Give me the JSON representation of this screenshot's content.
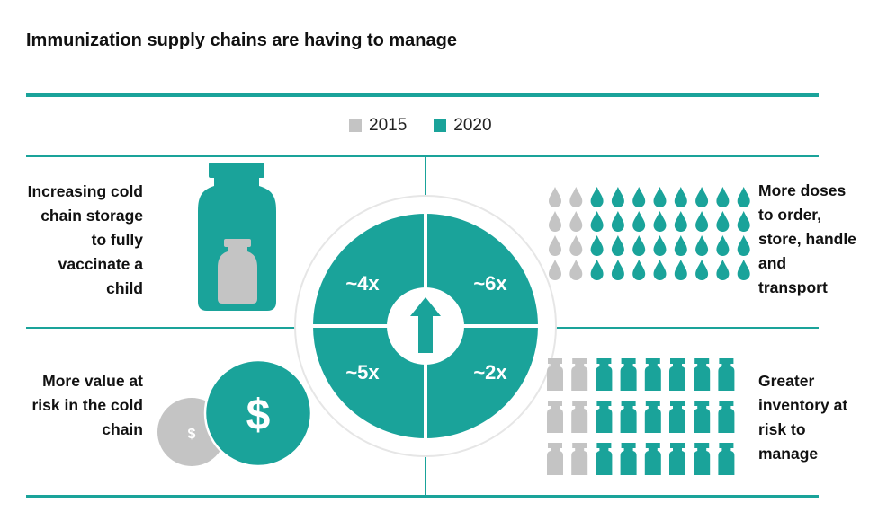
{
  "title": "Immunization supply chains are having to manage",
  "legend": [
    {
      "label": "2015",
      "color": "#c4c4c4"
    },
    {
      "label": "2020",
      "color": "#1aa39a"
    }
  ],
  "colors": {
    "accent": "#1aa39a",
    "grey": "#c4c4c4"
  },
  "center_icon": "up-arrow-icon",
  "quadrants": {
    "top_left": {
      "lines": [
        "Increasing cold",
        "chain storage",
        "to fully",
        "vaccinate a",
        "child"
      ],
      "multiplier": "~4x",
      "icon": "vial-icon"
    },
    "top_right": {
      "lines": [
        "More doses",
        "to order,",
        "store, handle",
        "and",
        "transport"
      ],
      "multiplier": "~6x",
      "icon": "drop-icon"
    },
    "bottom_left": {
      "lines": [
        "More value at",
        "risk in the cold",
        "chain"
      ],
      "multiplier": "~5x",
      "icon": "coin-icon",
      "coin_symbol": "$"
    },
    "bottom_right": {
      "lines": [
        "Greater",
        "inventory at",
        "risk to",
        "manage"
      ],
      "multiplier": "~2x",
      "icon": "vial-icon"
    }
  }
}
